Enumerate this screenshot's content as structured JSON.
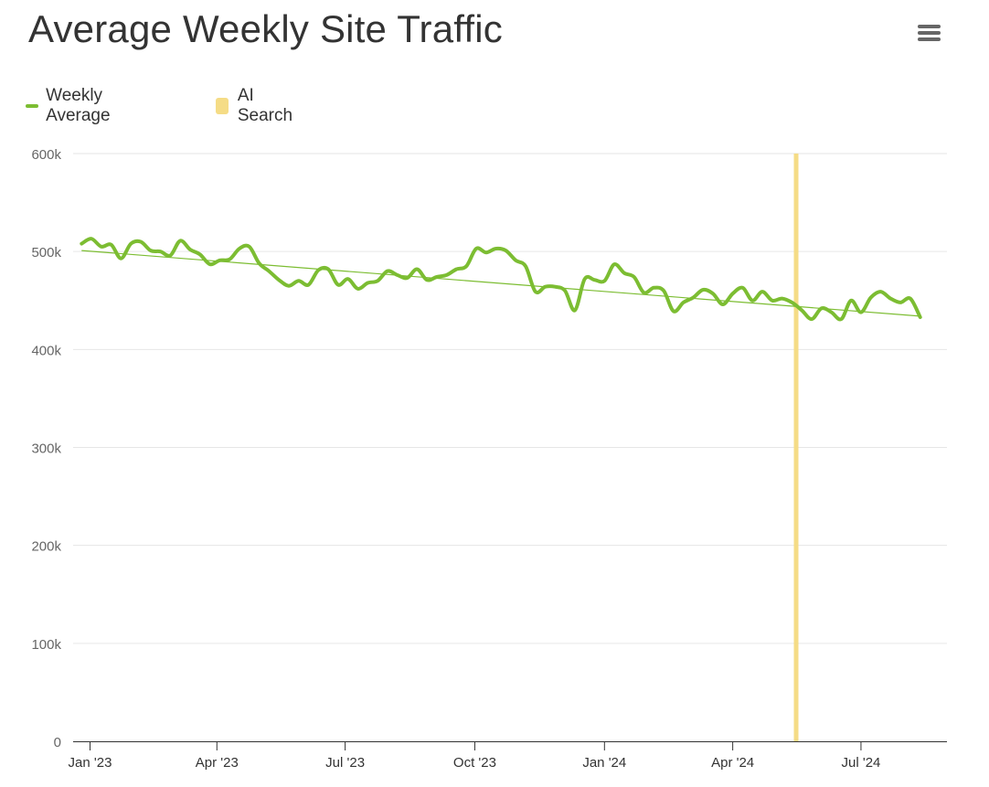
{
  "header": {
    "title": "Average Weekly Site Traffic",
    "menu_icon": "hamburger-menu-icon"
  },
  "legend": {
    "items": [
      {
        "label": "Weekly Average",
        "color": "#7cbd32",
        "symbol": "line"
      },
      {
        "label": "AI Search",
        "color": "#f5dc86",
        "symbol": "box"
      }
    ]
  },
  "chart_data": {
    "type": "line",
    "title": "Average Weekly Site Traffic",
    "xlabel": "",
    "ylabel": "",
    "ylim": [
      0,
      600000
    ],
    "y_ticks": [
      {
        "value": 0,
        "label": "0"
      },
      {
        "value": 100000,
        "label": "100k"
      },
      {
        "value": 200000,
        "label": "200k"
      },
      {
        "value": 300000,
        "label": "300k"
      },
      {
        "value": 400000,
        "label": "400k"
      },
      {
        "value": 500000,
        "label": "500k"
      },
      {
        "value": 600000,
        "label": "600k"
      }
    ],
    "x_ticks": [
      {
        "date": "2023-01-01",
        "label": "Jan '23"
      },
      {
        "date": "2023-04-01",
        "label": "Apr '23"
      },
      {
        "date": "2023-07-01",
        "label": "Jul '23"
      },
      {
        "date": "2023-10-01",
        "label": "Oct '23"
      },
      {
        "date": "2024-01-01",
        "label": "Jan '24"
      },
      {
        "date": "2024-04-01",
        "label": "Apr '24"
      },
      {
        "date": "2024-07-01",
        "label": "Jul '24"
      }
    ],
    "xlim": [
      "2022-12-20",
      "2024-08-31"
    ],
    "grid": true,
    "legend_position": "top-left",
    "series": [
      {
        "name": "Weekly Average",
        "color": "#7cbd32",
        "points": [
          [
            "2022-12-26",
            508000
          ],
          [
            "2023-01-02",
            513000
          ],
          [
            "2023-01-09",
            505000
          ],
          [
            "2023-01-16",
            507000
          ],
          [
            "2023-01-23",
            493000
          ],
          [
            "2023-01-30",
            508000
          ],
          [
            "2023-02-06",
            510000
          ],
          [
            "2023-02-13",
            501000
          ],
          [
            "2023-02-20",
            500000
          ],
          [
            "2023-02-27",
            496000
          ],
          [
            "2023-03-06",
            511000
          ],
          [
            "2023-03-13",
            502000
          ],
          [
            "2023-03-20",
            497000
          ],
          [
            "2023-03-27",
            487000
          ],
          [
            "2023-04-03",
            491000
          ],
          [
            "2023-04-10",
            492000
          ],
          [
            "2023-04-17",
            503000
          ],
          [
            "2023-04-24",
            505000
          ],
          [
            "2023-05-01",
            488000
          ],
          [
            "2023-05-08",
            480000
          ],
          [
            "2023-05-15",
            471000
          ],
          [
            "2023-05-22",
            465000
          ],
          [
            "2023-05-29",
            470000
          ],
          [
            "2023-06-05",
            466000
          ],
          [
            "2023-06-12",
            481000
          ],
          [
            "2023-06-19",
            482000
          ],
          [
            "2023-06-26",
            466000
          ],
          [
            "2023-07-03",
            472000
          ],
          [
            "2023-07-10",
            462000
          ],
          [
            "2023-07-17",
            468000
          ],
          [
            "2023-07-24",
            470000
          ],
          [
            "2023-07-31",
            480000
          ],
          [
            "2023-08-07",
            476000
          ],
          [
            "2023-08-14",
            473000
          ],
          [
            "2023-08-21",
            482000
          ],
          [
            "2023-08-28",
            471000
          ],
          [
            "2023-09-04",
            474000
          ],
          [
            "2023-09-11",
            476000
          ],
          [
            "2023-09-18",
            482000
          ],
          [
            "2023-09-25",
            485000
          ],
          [
            "2023-10-02",
            503000
          ],
          [
            "2023-10-09",
            499000
          ],
          [
            "2023-10-16",
            503000
          ],
          [
            "2023-10-23",
            501000
          ],
          [
            "2023-10-30",
            491000
          ],
          [
            "2023-11-06",
            485000
          ],
          [
            "2023-11-13",
            459000
          ],
          [
            "2023-11-20",
            464000
          ],
          [
            "2023-11-27",
            464000
          ],
          [
            "2023-12-04",
            460000
          ],
          [
            "2023-12-11",
            440000
          ],
          [
            "2023-12-18",
            472000
          ],
          [
            "2023-12-25",
            471000
          ],
          [
            "2024-01-01",
            470000
          ],
          [
            "2024-01-08",
            487000
          ],
          [
            "2024-01-15",
            478000
          ],
          [
            "2024-01-22",
            474000
          ],
          [
            "2024-01-29",
            458000
          ],
          [
            "2024-02-05",
            463000
          ],
          [
            "2024-02-12",
            460000
          ],
          [
            "2024-02-19",
            439000
          ],
          [
            "2024-02-26",
            448000
          ],
          [
            "2024-03-04",
            453000
          ],
          [
            "2024-03-11",
            461000
          ],
          [
            "2024-03-18",
            457000
          ],
          [
            "2024-03-25",
            446000
          ],
          [
            "2024-04-01",
            457000
          ],
          [
            "2024-04-08",
            463000
          ],
          [
            "2024-04-15",
            450000
          ],
          [
            "2024-04-22",
            459000
          ],
          [
            "2024-04-29",
            450000
          ],
          [
            "2024-05-06",
            452000
          ],
          [
            "2024-05-13",
            448000
          ],
          [
            "2024-05-20",
            440000
          ],
          [
            "2024-05-27",
            431000
          ],
          [
            "2024-06-03",
            442000
          ],
          [
            "2024-06-10",
            438000
          ],
          [
            "2024-06-17",
            431000
          ],
          [
            "2024-06-24",
            450000
          ],
          [
            "2024-07-01",
            438000
          ],
          [
            "2024-07-08",
            453000
          ],
          [
            "2024-07-15",
            459000
          ],
          [
            "2024-07-22",
            452000
          ],
          [
            "2024-07-29",
            448000
          ],
          [
            "2024-08-05",
            452000
          ],
          [
            "2024-08-12",
            433000
          ]
        ]
      },
      {
        "type": "trendline",
        "color": "#7cbd32",
        "points": [
          [
            "2022-12-26",
            501000
          ],
          [
            "2024-08-12",
            434000
          ]
        ]
      }
    ],
    "bands": [
      {
        "name": "AI Search",
        "color": "#f5dc86",
        "date": "2024-05-16"
      }
    ]
  }
}
